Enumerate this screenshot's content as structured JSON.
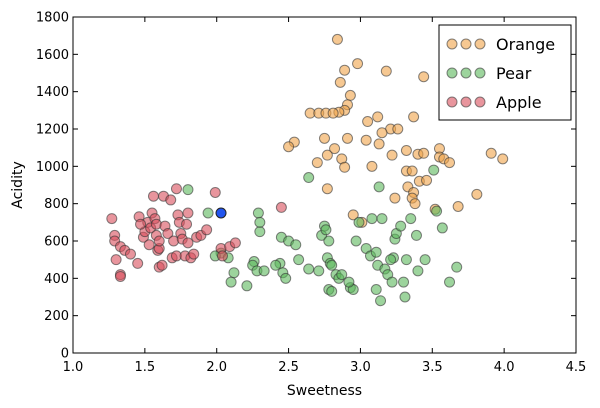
{
  "chart_data": {
    "type": "scatter",
    "title": "",
    "xlabel": "Sweetness",
    "ylabel": "Acidity",
    "xlim": [
      1.0,
      4.5
    ],
    "ylim": [
      0,
      1800
    ],
    "xticks": [
      1.0,
      1.5,
      2.0,
      2.5,
      3.0,
      3.5,
      4.0,
      4.5
    ],
    "xtick_labels": [
      "1.0",
      "1.5",
      "2.0",
      "2.5",
      "3.0",
      "3.5",
      "4.0",
      "4.5"
    ],
    "yticks": [
      0,
      200,
      400,
      600,
      800,
      1000,
      1200,
      1400,
      1600,
      1800
    ],
    "ytick_labels": [
      "0",
      "200",
      "400",
      "600",
      "800",
      "1000",
      "1200",
      "1400",
      "1600",
      "1800"
    ],
    "grid": false,
    "legend_position": "top-right",
    "series": [
      {
        "name": "Orange",
        "color": "#f0a34a",
        "points": [
          [
            2.84,
            1680
          ],
          [
            3.18,
            1510
          ],
          [
            2.98,
            1550
          ],
          [
            2.89,
            1515
          ],
          [
            3.44,
            1480
          ],
          [
            2.86,
            1450
          ],
          [
            2.93,
            1380
          ],
          [
            2.91,
            1330
          ],
          [
            2.89,
            1300
          ],
          [
            2.85,
            1290
          ],
          [
            2.65,
            1285
          ],
          [
            2.71,
            1285
          ],
          [
            2.76,
            1285
          ],
          [
            2.81,
            1285
          ],
          [
            3.05,
            1240
          ],
          [
            3.12,
            1265
          ],
          [
            3.37,
            1265
          ],
          [
            3.21,
            1200
          ],
          [
            3.26,
            1200
          ],
          [
            3.15,
            1180
          ],
          [
            2.75,
            1150
          ],
          [
            2.91,
            1150
          ],
          [
            3.04,
            1140
          ],
          [
            3.13,
            1120
          ],
          [
            2.54,
            1130
          ],
          [
            2.5,
            1105
          ],
          [
            2.82,
            1095
          ],
          [
            2.77,
            1060
          ],
          [
            3.22,
            1060
          ],
          [
            3.32,
            1085
          ],
          [
            3.4,
            1065
          ],
          [
            3.44,
            1070
          ],
          [
            3.55,
            1095
          ],
          [
            3.55,
            1050
          ],
          [
            3.58,
            1040
          ],
          [
            3.62,
            1020
          ],
          [
            3.91,
            1070
          ],
          [
            3.99,
            1040
          ],
          [
            2.7,
            1020
          ],
          [
            2.87,
            1040
          ],
          [
            2.89,
            995
          ],
          [
            3.32,
            975
          ],
          [
            3.36,
            975
          ],
          [
            3.33,
            890
          ],
          [
            3.37,
            860
          ],
          [
            3.41,
            920
          ],
          [
            3.46,
            925
          ],
          [
            3.36,
            830
          ],
          [
            3.38,
            800
          ],
          [
            2.77,
            880
          ],
          [
            3.08,
            1000
          ],
          [
            3.24,
            830
          ],
          [
            3.81,
            850
          ],
          [
            3.68,
            785
          ],
          [
            3.52,
            770
          ],
          [
            2.95,
            740
          ],
          [
            3.01,
            700
          ]
        ]
      },
      {
        "name": "Pear",
        "color": "#5cb85c",
        "points": [
          [
            1.8,
            875
          ],
          [
            1.94,
            750
          ],
          [
            2.03,
            535
          ],
          [
            2.08,
            510
          ],
          [
            1.99,
            520
          ],
          [
            2.12,
            430
          ],
          [
            2.1,
            380
          ],
          [
            2.21,
            360
          ],
          [
            2.26,
            490
          ],
          [
            2.25,
            470
          ],
          [
            2.28,
            440
          ],
          [
            2.33,
            440
          ],
          [
            2.3,
            650
          ],
          [
            2.29,
            750
          ],
          [
            2.3,
            700
          ],
          [
            2.44,
            480
          ],
          [
            2.46,
            430
          ],
          [
            2.48,
            400
          ],
          [
            2.41,
            470
          ],
          [
            2.45,
            620
          ],
          [
            2.5,
            600
          ],
          [
            2.55,
            580
          ],
          [
            2.57,
            500
          ],
          [
            2.64,
            940
          ],
          [
            2.64,
            450
          ],
          [
            2.71,
            440
          ],
          [
            2.73,
            630
          ],
          [
            2.75,
            680
          ],
          [
            2.76,
            660
          ],
          [
            2.78,
            600
          ],
          [
            2.77,
            510
          ],
          [
            2.79,
            480
          ],
          [
            2.8,
            470
          ],
          [
            2.78,
            340
          ],
          [
            2.8,
            330
          ],
          [
            2.83,
            420
          ],
          [
            2.85,
            400
          ],
          [
            2.87,
            420
          ],
          [
            2.93,
            350
          ],
          [
            2.95,
            340
          ],
          [
            2.97,
            600
          ],
          [
            2.99,
            700
          ],
          [
            3.04,
            560
          ],
          [
            3.07,
            520
          ],
          [
            3.08,
            720
          ],
          [
            3.11,
            540
          ],
          [
            3.13,
            890
          ],
          [
            3.15,
            720
          ],
          [
            3.12,
            470
          ],
          [
            3.17,
            450
          ],
          [
            3.19,
            420
          ],
          [
            3.22,
            380
          ],
          [
            3.23,
            510
          ],
          [
            3.21,
            500
          ],
          [
            3.24,
            610
          ],
          [
            3.25,
            640
          ],
          [
            3.28,
            680
          ],
          [
            3.32,
            500
          ],
          [
            3.3,
            380
          ],
          [
            3.31,
            300
          ],
          [
            3.35,
            720
          ],
          [
            3.39,
            630
          ],
          [
            3.4,
            440
          ],
          [
            3.45,
            500
          ],
          [
            3.51,
            980
          ],
          [
            3.53,
            760
          ],
          [
            3.57,
            670
          ],
          [
            3.62,
            380
          ],
          [
            3.67,
            460
          ],
          [
            3.14,
            280
          ],
          [
            3.11,
            340
          ],
          [
            2.92,
            380
          ]
        ]
      },
      {
        "name": "Apple",
        "color": "#d94f5c",
        "points": [
          [
            1.27,
            720
          ],
          [
            1.29,
            630
          ],
          [
            1.29,
            600
          ],
          [
            1.3,
            500
          ],
          [
            1.33,
            420
          ],
          [
            1.33,
            410
          ],
          [
            1.33,
            570
          ],
          [
            1.36,
            550
          ],
          [
            1.4,
            530
          ],
          [
            1.45,
            480
          ],
          [
            1.46,
            730
          ],
          [
            1.49,
            620
          ],
          [
            1.5,
            650
          ],
          [
            1.52,
            700
          ],
          [
            1.54,
            670
          ],
          [
            1.55,
            750
          ],
          [
            1.56,
            840
          ],
          [
            1.57,
            720
          ],
          [
            1.58,
            690
          ],
          [
            1.58,
            630
          ],
          [
            1.59,
            550
          ],
          [
            1.6,
            560
          ],
          [
            1.6,
            460
          ],
          [
            1.62,
            470
          ],
          [
            1.63,
            840
          ],
          [
            1.64,
            680
          ],
          [
            1.66,
            640
          ],
          [
            1.68,
            820
          ],
          [
            1.69,
            510
          ],
          [
            1.7,
            600
          ],
          [
            1.72,
            520
          ],
          [
            1.72,
            880
          ],
          [
            1.73,
            740
          ],
          [
            1.74,
            700
          ],
          [
            1.75,
            640
          ],
          [
            1.76,
            610
          ],
          [
            1.78,
            520
          ],
          [
            1.79,
            690
          ],
          [
            1.8,
            750
          ],
          [
            1.8,
            590
          ],
          [
            1.82,
            510
          ],
          [
            1.84,
            530
          ],
          [
            1.86,
            620
          ],
          [
            1.89,
            630
          ],
          [
            1.93,
            660
          ],
          [
            1.99,
            860
          ],
          [
            2.03,
            560
          ],
          [
            2.04,
            520
          ],
          [
            2.09,
            570
          ],
          [
            2.13,
            590
          ],
          [
            2.45,
            780
          ],
          [
            1.6,
            600
          ],
          [
            1.53,
            580
          ],
          [
            1.47,
            690
          ]
        ]
      }
    ],
    "highlight_point": {
      "x": 2.03,
      "y": 750,
      "color": "#2255ee"
    }
  }
}
